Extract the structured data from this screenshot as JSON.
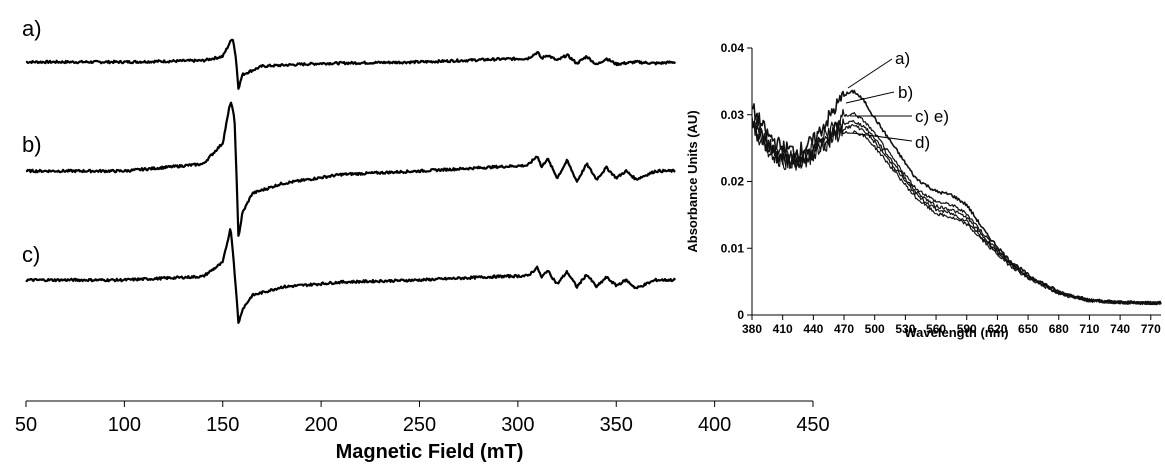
{
  "chart_data": [
    {
      "type": "line",
      "title": "",
      "xlabel": "Magnetic Field (mT)",
      "ylabel": "",
      "xlim": [
        50,
        450
      ],
      "xticks": [
        50,
        100,
        150,
        200,
        250,
        300,
        350,
        400,
        450
      ],
      "grid": false,
      "series": [
        {
          "label": "a)",
          "x": [
            50,
            100,
            140,
            150,
            155,
            156.5,
            158,
            160,
            170,
            200,
            250,
            290,
            305,
            310,
            312,
            315,
            320,
            325,
            330,
            335,
            340,
            345,
            350,
            360,
            370,
            380
          ],
          "y": [
            0,
            0,
            0.02,
            0.08,
            0.35,
            0.1,
            -0.38,
            -0.18,
            -0.06,
            -0.02,
            0,
            0.04,
            0.05,
            0.14,
            0.05,
            0.1,
            0.02,
            0.1,
            -0.02,
            0.08,
            -0.04,
            0.05,
            -0.03,
            0,
            -0.02,
            0
          ]
        },
        {
          "label": "b)",
          "x": [
            50,
            100,
            140,
            150,
            154,
            156,
            158,
            160,
            165,
            180,
            210,
            250,
            290,
            305,
            310,
            312,
            315,
            320,
            325,
            330,
            335,
            340,
            345,
            350,
            355,
            360,
            370,
            380
          ],
          "y": [
            0,
            0,
            0.1,
            0.4,
            1.0,
            0.75,
            -0.95,
            -0.6,
            -0.32,
            -0.18,
            -0.05,
            0,
            0.06,
            0.08,
            0.22,
            0.05,
            0.18,
            -0.1,
            0.15,
            -0.15,
            0.1,
            -0.12,
            0.05,
            -0.1,
            0,
            -0.12,
            0,
            0
          ]
        },
        {
          "label": "c)",
          "x": [
            50,
            100,
            140,
            150,
            154,
            155.5,
            158,
            160,
            165,
            180,
            210,
            250,
            290,
            305,
            310,
            312,
            315,
            320,
            325,
            330,
            335,
            340,
            345,
            350,
            355,
            360,
            370,
            380
          ],
          "y": [
            0,
            0,
            0.05,
            0.25,
            0.75,
            0.3,
            -0.62,
            -0.42,
            -0.22,
            -0.1,
            -0.03,
            0,
            0.05,
            0.06,
            0.18,
            0.03,
            0.14,
            -0.06,
            0.12,
            -0.1,
            0.08,
            -0.1,
            0.04,
            -0.08,
            0,
            -0.12,
            0,
            0
          ]
        }
      ]
    },
    {
      "type": "line",
      "title": "",
      "xlabel": "Wavelength (nm)",
      "ylabel": "Absorbance Units (AU)",
      "xlim": [
        380,
        780
      ],
      "ylim": [
        0,
        0.04
      ],
      "xticks": [
        380,
        410,
        440,
        470,
        500,
        530,
        560,
        590,
        620,
        650,
        680,
        710,
        740,
        770
      ],
      "yticks": [
        0,
        0.01,
        0.02,
        0.03,
        0.04
      ],
      "ytick_labels": [
        "0",
        "0.01",
        "0.02",
        "0.03",
        "0.04"
      ],
      "grid": false,
      "series": [
        {
          "label": "a)",
          "x": [
            380,
            395,
            410,
            425,
            440,
            455,
            470,
            480,
            490,
            500,
            520,
            540,
            560,
            575,
            590,
            610,
            630,
            650,
            680,
            710,
            740,
            770,
            780
          ],
          "y": [
            0.031,
            0.027,
            0.025,
            0.0245,
            0.026,
            0.0295,
            0.033,
            0.0335,
            0.032,
            0.0295,
            0.025,
            0.0205,
            0.0185,
            0.018,
            0.0165,
            0.012,
            0.0085,
            0.006,
            0.0035,
            0.0022,
            0.0019,
            0.0018,
            0.0018
          ]
        },
        {
          "label": "b)",
          "x": [
            380,
            395,
            410,
            425,
            440,
            455,
            470,
            480,
            490,
            500,
            520,
            540,
            560,
            575,
            590,
            610,
            630,
            650,
            680,
            710,
            740,
            770,
            780
          ],
          "y": [
            0.03,
            0.026,
            0.024,
            0.0235,
            0.025,
            0.0275,
            0.0298,
            0.0302,
            0.029,
            0.0272,
            0.023,
            0.019,
            0.017,
            0.0165,
            0.0152,
            0.0115,
            0.0082,
            0.0058,
            0.0034,
            0.0022,
            0.0019,
            0.0018,
            0.0018
          ]
        },
        {
          "label": "c)",
          "x": [
            380,
            395,
            410,
            425,
            440,
            455,
            470,
            480,
            490,
            500,
            520,
            540,
            560,
            575,
            590,
            610,
            630,
            650,
            680,
            710,
            740,
            770,
            780
          ],
          "y": [
            0.0292,
            0.0255,
            0.0235,
            0.023,
            0.0245,
            0.0268,
            0.0287,
            0.029,
            0.0282,
            0.0265,
            0.0225,
            0.0185,
            0.0163,
            0.0158,
            0.0146,
            0.0111,
            0.008,
            0.0057,
            0.0033,
            0.0022,
            0.0019,
            0.0018,
            0.0018
          ]
        },
        {
          "label": "d)",
          "x": [
            380,
            395,
            410,
            425,
            440,
            455,
            470,
            480,
            490,
            500,
            520,
            540,
            560,
            575,
            590,
            610,
            630,
            650,
            680,
            710,
            740,
            770,
            780
          ],
          "y": [
            0.0282,
            0.0248,
            0.023,
            0.0225,
            0.0238,
            0.026,
            0.0272,
            0.0275,
            0.0268,
            0.0252,
            0.0214,
            0.0176,
            0.0152,
            0.0146,
            0.0136,
            0.0105,
            0.0077,
            0.0055,
            0.0032,
            0.0021,
            0.0019,
            0.0018,
            0.0018
          ]
        },
        {
          "label": "e)",
          "x": [
            380,
            395,
            410,
            425,
            440,
            455,
            470,
            480,
            490,
            500,
            520,
            540,
            560,
            575,
            590,
            610,
            630,
            650,
            680,
            710,
            740,
            770,
            780
          ],
          "y": [
            0.0287,
            0.0252,
            0.0232,
            0.0228,
            0.0242,
            0.0265,
            0.028,
            0.0284,
            0.0276,
            0.0259,
            0.022,
            0.0181,
            0.0158,
            0.0152,
            0.0141,
            0.0108,
            0.0079,
            0.0056,
            0.0033,
            0.0022,
            0.0019,
            0.0018,
            0.0018
          ]
        }
      ],
      "annotations": [
        "a)",
        "b)",
        "c) e)",
        "d)"
      ]
    }
  ]
}
